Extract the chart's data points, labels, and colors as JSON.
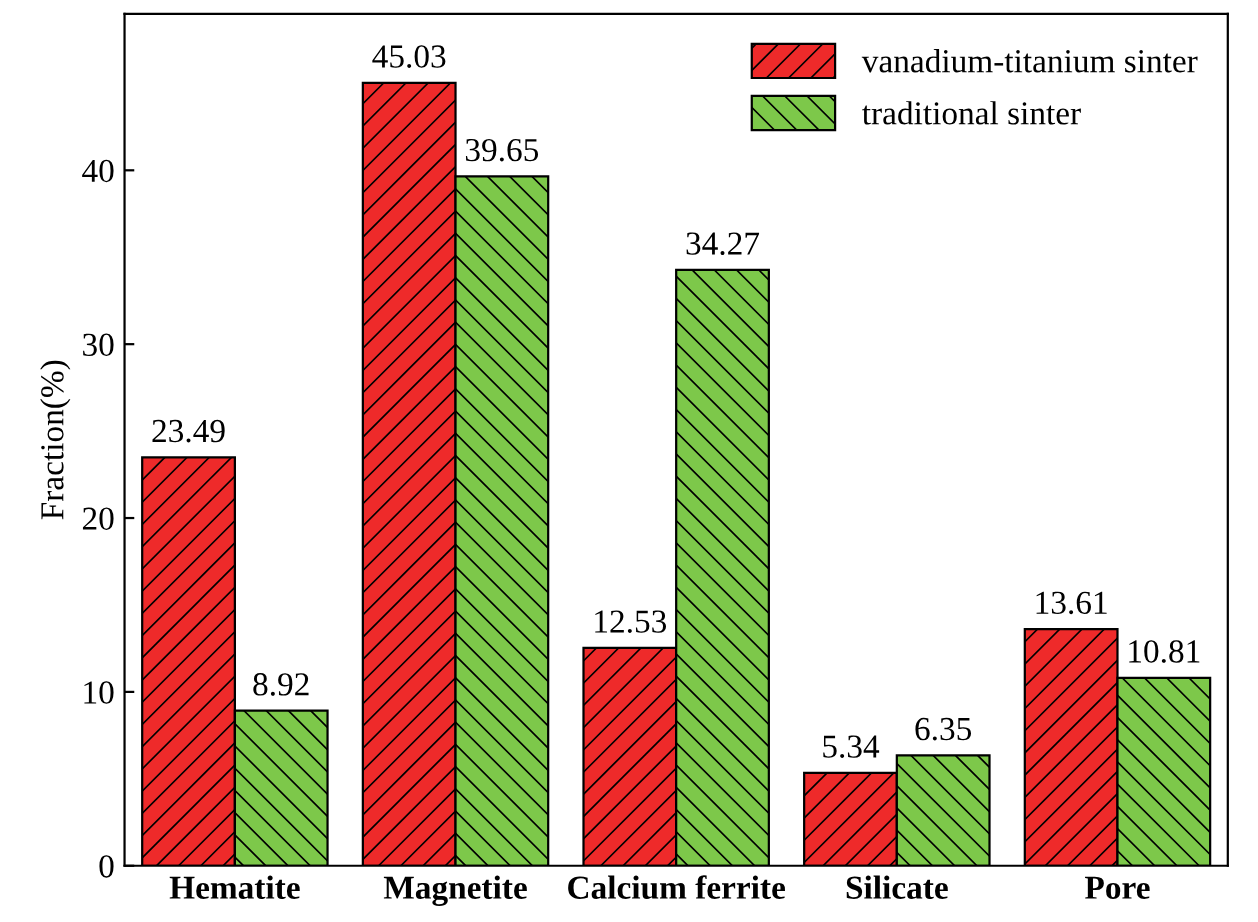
{
  "chart_data": {
    "type": "bar",
    "ylabel": "Fraction(%)",
    "categories": [
      "Hematite",
      "Magnetite",
      "Calcium ferrite",
      "Silicate",
      "Pore"
    ],
    "series": [
      {
        "name": "vanadium-titanium sinter",
        "color": "#ee2a2a",
        "values": [
          23.49,
          45.03,
          12.53,
          5.34,
          13.61
        ]
      },
      {
        "name": "traditional sinter",
        "color": "#7dc84a",
        "values": [
          8.92,
          39.65,
          34.27,
          6.35,
          10.81
        ]
      }
    ],
    "ylim": [
      0,
      49
    ],
    "yticks": [
      0,
      10,
      20,
      30,
      40
    ],
    "grid": false,
    "legend": "top right",
    "data_labels": true
  }
}
